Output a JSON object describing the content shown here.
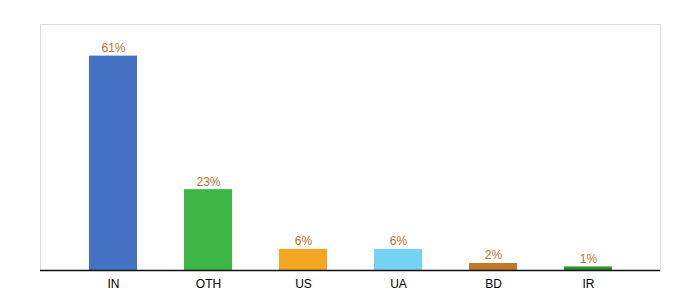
{
  "chart_data": {
    "type": "bar",
    "categories": [
      "IN",
      "OTH",
      "US",
      "UA",
      "BD",
      "IR"
    ],
    "values": [
      61,
      23,
      6,
      6,
      2,
      1
    ],
    "value_labels": [
      "61%",
      "23%",
      "6%",
      "6%",
      "2%",
      "1%"
    ],
    "colors": [
      "#4472c4",
      "#3cb544",
      "#f5a623",
      "#76d3f5",
      "#c07828",
      "#2e8b2e"
    ],
    "ylim": [
      0,
      70
    ],
    "data_labels": true,
    "tick_labels": "x",
    "grid": false
  }
}
